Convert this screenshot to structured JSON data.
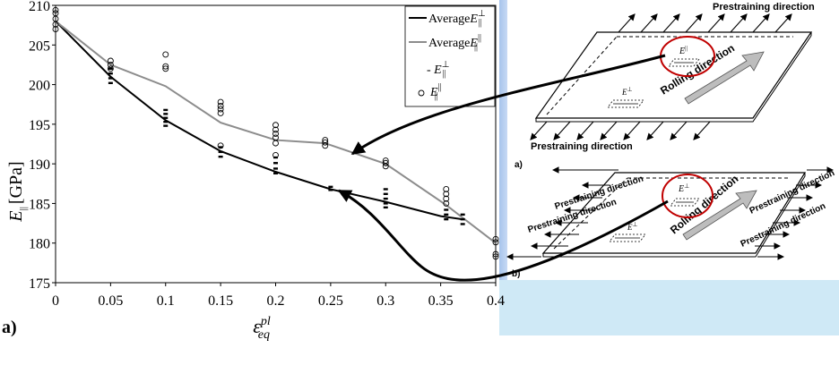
{
  "figure_label": "a)",
  "chart_data": {
    "type": "line",
    "xlabel": "ε",
    "xlabel_sup": "pl",
    "xlabel_sub": "eq",
    "ylabel": "E",
    "ylabel_sub": "||",
    "ylabel_unit": "[GPa]",
    "xlim": [
      0,
      0.4
    ],
    "ylim": [
      175,
      210
    ],
    "x_ticks": [
      0,
      0.05,
      0.1,
      0.15,
      0.2,
      0.25,
      0.3,
      0.35,
      0.4
    ],
    "x_tick_labels": [
      "0",
      "0.05",
      "0.1",
      "0.15",
      "0.2",
      "0.25",
      "0.3",
      "0.35",
      "0.4"
    ],
    "y_ticks": [
      175,
      180,
      185,
      190,
      195,
      200,
      205,
      210
    ],
    "y_tick_labels": [
      "175",
      "180",
      "185",
      "190",
      "195",
      "200",
      "205",
      "210"
    ],
    "grid": false,
    "legend_position": "top-right",
    "series": [
      {
        "kind": "line",
        "color": "#000000",
        "legend": "Average",
        "legend_sym": "E",
        "legend_sup": "⊥",
        "legend_sub": "||",
        "x": [
          0,
          0.05,
          0.1,
          0.15,
          0.2,
          0.25,
          0.3,
          0.35,
          0.37
        ],
        "y": [
          208,
          201,
          195.5,
          191.6,
          189,
          186.8,
          185.2,
          183.4,
          183
        ]
      },
      {
        "kind": "line",
        "color": "#8c8c8c",
        "legend": "Average",
        "legend_sym": "E",
        "legend_sup": "||",
        "legend_sub": "||",
        "x": [
          0,
          0.05,
          0.1,
          0.15,
          0.2,
          0.245,
          0.3,
          0.355,
          0.4
        ],
        "y": [
          208,
          202.5,
          199.8,
          195.2,
          193,
          192.6,
          190,
          184.8,
          180
        ]
      },
      {
        "kind": "dash",
        "color": "#000000",
        "legend": "- ",
        "legend_sym": "E",
        "legend_sup": "⊥",
        "legend_sub": "||",
        "points": [
          [
            0.05,
            200.2
          ],
          [
            0.05,
            200.8
          ],
          [
            0.05,
            201.4
          ],
          [
            0.05,
            202
          ],
          [
            0.1,
            194.8
          ],
          [
            0.1,
            195.3
          ],
          [
            0.1,
            195.8
          ],
          [
            0.1,
            196.3
          ],
          [
            0.1,
            196.8
          ],
          [
            0.15,
            190.9
          ],
          [
            0.15,
            191.5
          ],
          [
            0.15,
            192.1
          ],
          [
            0.2,
            188.8
          ],
          [
            0.2,
            189.4
          ],
          [
            0.2,
            190.1
          ],
          [
            0.2,
            190.8
          ],
          [
            0.25,
            186.7
          ],
          [
            0.25,
            187.1
          ],
          [
            0.3,
            184.5
          ],
          [
            0.3,
            185
          ],
          [
            0.3,
            185.6
          ],
          [
            0.3,
            186.2
          ],
          [
            0.3,
            186.8
          ],
          [
            0.355,
            183
          ],
          [
            0.355,
            183.6
          ],
          [
            0.355,
            184.2
          ],
          [
            0.37,
            182.4
          ],
          [
            0.37,
            183
          ],
          [
            0.37,
            183.6
          ]
        ]
      },
      {
        "kind": "circle",
        "color": "#000000",
        "legend": "",
        "legend_sym": "E",
        "legend_sup": "||",
        "legend_sub": "||",
        "points": [
          [
            0,
            207
          ],
          [
            0,
            207.6
          ],
          [
            0,
            208.3
          ],
          [
            0,
            209
          ],
          [
            0,
            209.4
          ],
          [
            0.05,
            202
          ],
          [
            0.05,
            202.5
          ],
          [
            0.05,
            203
          ],
          [
            0.1,
            202
          ],
          [
            0.1,
            202.3
          ],
          [
            0.1,
            203.8
          ],
          [
            0.15,
            192.3
          ],
          [
            0.15,
            196.4
          ],
          [
            0.15,
            196.9
          ],
          [
            0.15,
            197.3
          ],
          [
            0.15,
            197.8
          ],
          [
            0.2,
            191.1
          ],
          [
            0.2,
            192.6
          ],
          [
            0.2,
            193.3
          ],
          [
            0.2,
            193.8
          ],
          [
            0.2,
            194.3
          ],
          [
            0.2,
            194.9
          ],
          [
            0.245,
            192.3
          ],
          [
            0.245,
            192.7
          ],
          [
            0.245,
            193
          ],
          [
            0.3,
            189.7
          ],
          [
            0.3,
            190.1
          ],
          [
            0.3,
            190.4
          ],
          [
            0.355,
            185
          ],
          [
            0.355,
            185.6
          ],
          [
            0.355,
            186.2
          ],
          [
            0.355,
            186.8
          ],
          [
            0.4,
            178.3
          ],
          [
            0.4,
            178.6
          ],
          [
            0.4,
            180.1
          ],
          [
            0.4,
            180.5
          ]
        ]
      }
    ]
  },
  "schematic": {
    "top": {
      "direction_label": "Prestraining direction",
      "lower_direction_label": "Prestraining direction",
      "rolling_label": "Rolling direction",
      "inner_label": "E",
      "inner_sup": "⊥",
      "circled_label": "E",
      "circled_sup": "||",
      "panel_label": "a)"
    },
    "bottom": {
      "direction_left_1": "Prestraining direction",
      "direction_left_2": "Prestraining direction",
      "direction_right_1": "Prestraining direction",
      "direction_right_2": "Prestraining direction",
      "rolling_label": "Rolling direction",
      "inner_label": "E",
      "inner_sup": "⊥",
      "circled_label": "E",
      "circled_sup": "⊥",
      "panel_label": "b)"
    }
  }
}
